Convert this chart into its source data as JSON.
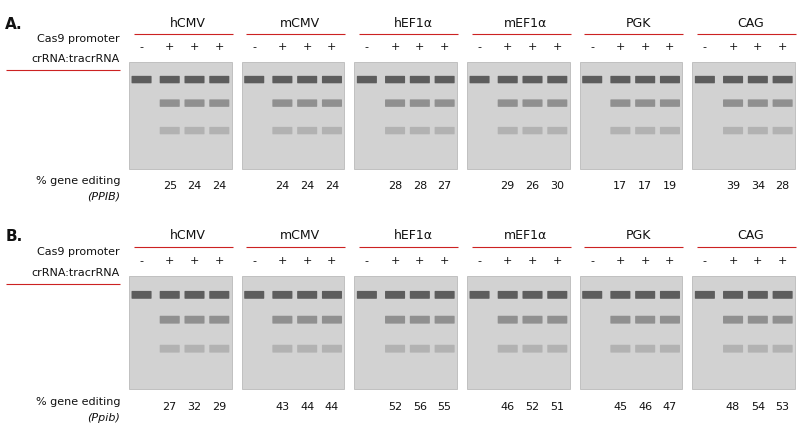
{
  "panel_A_label": "A.",
  "panel_B_label": "B.",
  "promoters": [
    "hCMV",
    "mCMV",
    "hEF1α",
    "mEF1α",
    "PGK",
    "CAG"
  ],
  "cas9_promoter_label": "Cas9 promoter",
  "crrna_label": "crRNA:tracrRNA",
  "pct_label": "% gene editing",
  "panel_A_italic_gene": "PPIB",
  "panel_B_italic_gene": "Ppib",
  "panel_A_values": [
    [
      "25",
      "24",
      "24"
    ],
    [
      "24",
      "24",
      "24"
    ],
    [
      "28",
      "28",
      "27"
    ],
    [
      "29",
      "26",
      "30"
    ],
    [
      "17",
      "17",
      "19"
    ],
    [
      "39",
      "34",
      "28"
    ]
  ],
  "panel_B_values": [
    [
      "27",
      "32",
      "29"
    ],
    [
      "43",
      "44",
      "44"
    ],
    [
      "52",
      "56",
      "55"
    ],
    [
      "46",
      "52",
      "51"
    ],
    [
      "45",
      "46",
      "47"
    ],
    [
      "48",
      "54",
      "53"
    ]
  ],
  "gel_bg": "#d2d2d2",
  "band_color_dark": "#444444",
  "band_color_mid": "#777777",
  "band_color_light": "#999999",
  "fig_bg": "#ffffff",
  "underline_color": "#cc2222",
  "text_color": "#111111",
  "panel_label_fontsize": 11,
  "promoter_fontsize": 9,
  "title_fontsize": 8,
  "sign_fontsize": 8,
  "value_fontsize": 8
}
